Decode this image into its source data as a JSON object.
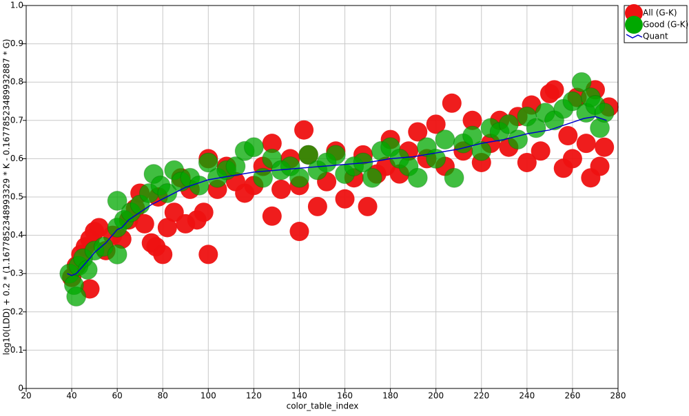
{
  "chart_data": {
    "type": "scatter",
    "x_label": "color_table_index",
    "y_label": "log10(LDD) + 0.2 * (1.1677852348993329 * K - 0.16778523489932887 * G)",
    "xlim": [
      20,
      280
    ],
    "ylim": [
      0,
      1
    ],
    "xticks": [
      20,
      40,
      60,
      80,
      100,
      120,
      140,
      160,
      180,
      200,
      220,
      240,
      260,
      280
    ],
    "yticks": [
      0,
      0.1,
      0.2,
      0.3,
      0.4,
      0.5,
      0.6,
      0.7,
      0.8,
      0.9,
      {
        "value": 1,
        "label": "1.0"
      }
    ],
    "grid": true,
    "legend": "upper right",
    "series": [
      {
        "name": "All (G-K)",
        "type": "scatter",
        "color": "#ee1111",
        "x": [
          40,
          42,
          44,
          46,
          48,
          48,
          50,
          52,
          55,
          58,
          62,
          65,
          68,
          70,
          72,
          75,
          77,
          78,
          80,
          82,
          85,
          88,
          90,
          92,
          95,
          98,
          100,
          100,
          104,
          108,
          112,
          116,
          120,
          124,
          128,
          128,
          132,
          136,
          140,
          140,
          142,
          144,
          148,
          152,
          156,
          160,
          164,
          168,
          170,
          174,
          178,
          180,
          184,
          188,
          192,
          196,
          200,
          204,
          207,
          212,
          216,
          220,
          224,
          228,
          232,
          236,
          240,
          242,
          246,
          250,
          252,
          256,
          258,
          260,
          262,
          266,
          268,
          270,
          272,
          274,
          276
        ],
        "values": [
          0.29,
          0.32,
          0.35,
          0.37,
          0.26,
          0.39,
          0.41,
          0.42,
          0.36,
          0.4,
          0.39,
          0.44,
          0.47,
          0.51,
          0.43,
          0.38,
          0.37,
          0.5,
          0.35,
          0.42,
          0.46,
          0.55,
          0.43,
          0.52,
          0.44,
          0.46,
          0.35,
          0.6,
          0.52,
          0.58,
          0.54,
          0.51,
          0.53,
          0.58,
          0.45,
          0.64,
          0.52,
          0.6,
          0.41,
          0.53,
          0.675,
          0.61,
          0.475,
          0.54,
          0.62,
          0.495,
          0.55,
          0.61,
          0.475,
          0.56,
          0.58,
          0.65,
          0.56,
          0.62,
          0.67,
          0.6,
          0.69,
          0.58,
          0.745,
          0.62,
          0.7,
          0.59,
          0.64,
          0.7,
          0.63,
          0.71,
          0.59,
          0.74,
          0.62,
          0.77,
          0.78,
          0.575,
          0.66,
          0.6,
          0.76,
          0.64,
          0.55,
          0.78,
          0.58,
          0.63,
          0.735
        ]
      },
      {
        "name": "Good (G-K)",
        "type": "scatter",
        "color": "#00a800",
        "x": [
          39,
          41,
          42,
          43,
          45,
          47,
          50,
          54,
          60,
          60,
          60,
          63,
          66,
          70,
          74,
          76,
          79,
          82,
          85,
          88,
          92,
          96,
          100,
          104,
          108,
          112,
          116,
          120,
          124,
          128,
          132,
          136,
          140,
          144,
          148,
          152,
          156,
          160,
          164,
          168,
          172,
          176,
          180,
          184,
          188,
          192,
          196,
          200,
          204,
          208,
          212,
          216,
          220,
          224,
          228,
          232,
          236,
          240,
          244,
          248,
          252,
          256,
          260,
          264,
          266,
          268,
          270,
          272,
          274
        ],
        "values": [
          0.3,
          0.27,
          0.24,
          0.32,
          0.34,
          0.31,
          0.36,
          0.37,
          0.49,
          0.35,
          0.42,
          0.44,
          0.46,
          0.48,
          0.51,
          0.56,
          0.53,
          0.51,
          0.57,
          0.54,
          0.55,
          0.53,
          0.59,
          0.55,
          0.57,
          0.58,
          0.62,
          0.63,
          0.55,
          0.6,
          0.57,
          0.58,
          0.55,
          0.61,
          0.57,
          0.59,
          0.61,
          0.56,
          0.58,
          0.59,
          0.55,
          0.62,
          0.63,
          0.6,
          0.58,
          0.55,
          0.63,
          0.6,
          0.65,
          0.55,
          0.64,
          0.66,
          0.62,
          0.68,
          0.67,
          0.69,
          0.65,
          0.71,
          0.68,
          0.72,
          0.7,
          0.73,
          0.75,
          0.8,
          0.72,
          0.76,
          0.74,
          0.68,
          0.72
        ]
      },
      {
        "name": "Quant",
        "type": "line",
        "color": "#0000cc",
        "x": [
          38,
          40,
          42,
          45,
          48,
          50,
          55,
          60,
          62,
          65,
          70,
          75,
          80,
          85,
          90,
          95,
          100,
          110,
          120,
          130,
          140,
          150,
          160,
          170,
          180,
          190,
          200,
          210,
          220,
          230,
          240,
          250,
          260,
          265,
          270,
          275
        ],
        "values": [
          0.3,
          0.295,
          0.3,
          0.32,
          0.34,
          0.355,
          0.38,
          0.415,
          0.42,
          0.44,
          0.46,
          0.48,
          0.495,
          0.51,
          0.525,
          0.535,
          0.545,
          0.555,
          0.565,
          0.57,
          0.575,
          0.58,
          0.585,
          0.59,
          0.6,
          0.605,
          0.615,
          0.625,
          0.64,
          0.65,
          0.665,
          0.675,
          0.695,
          0.705,
          0.71,
          0.7
        ]
      }
    ]
  }
}
